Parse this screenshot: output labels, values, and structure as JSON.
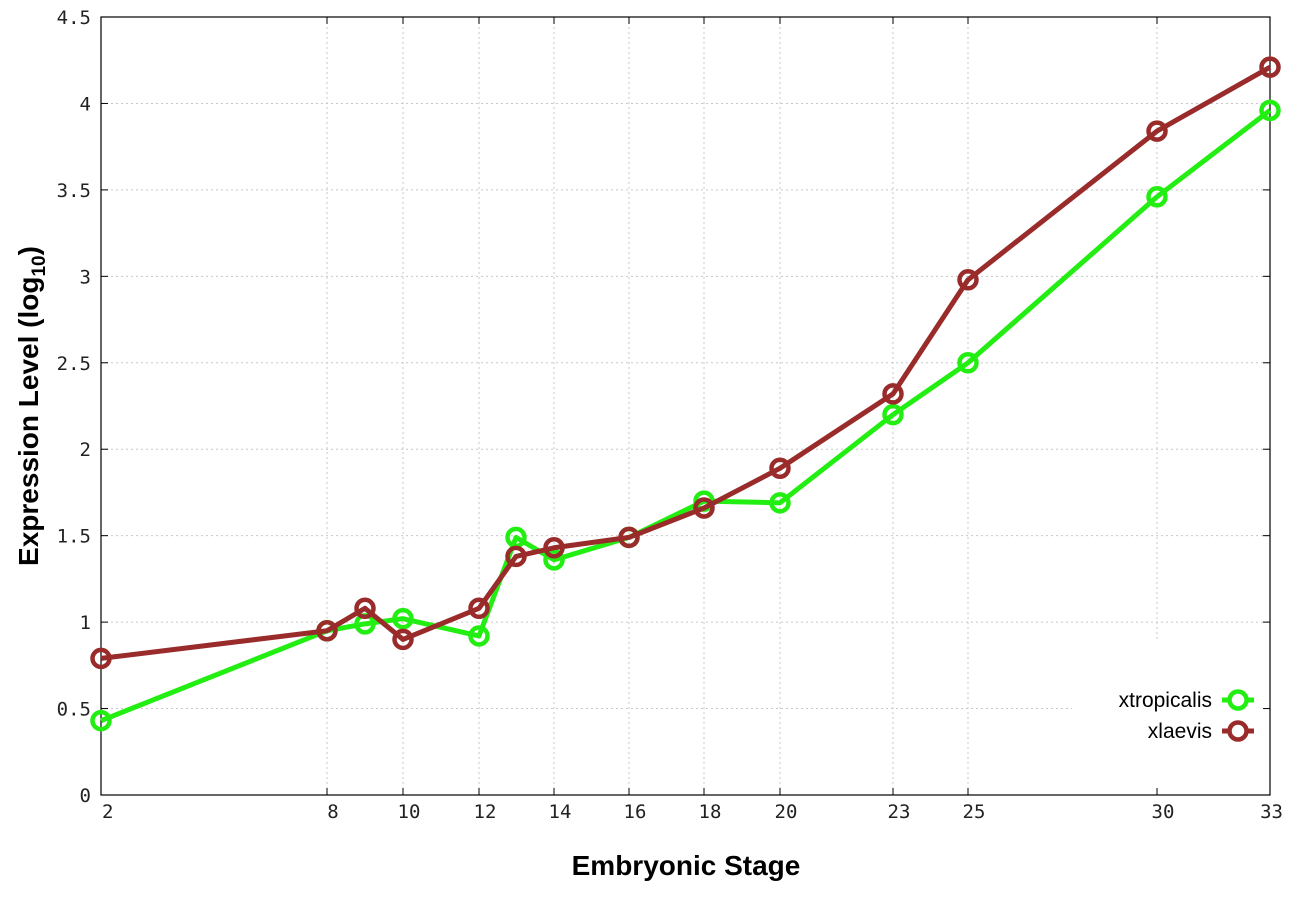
{
  "chart_data": {
    "type": "line",
    "title": "",
    "xlabel": "Embryonic Stage",
    "ylabel_main": "Expression Level (log",
    "ylabel_sub": "10",
    "ylabel_close": ")",
    "x_categories": [
      "2",
      "8",
      "9",
      "10",
      "12",
      "13",
      "14",
      "16",
      "18",
      "20",
      "23",
      "25",
      "30",
      "33"
    ],
    "x_tick_labels": [
      "2",
      "8",
      "10",
      "12",
      "14",
      "16",
      "18",
      "20",
      "23",
      "25",
      "30",
      "33"
    ],
    "y_tick_labels": [
      "0",
      "0.5",
      "1",
      "1.5",
      "2",
      "2.5",
      "3",
      "3.5",
      "4",
      "4.5"
    ],
    "ylim": [
      0,
      4.5
    ],
    "grid": true,
    "legend_position": "bottom-right",
    "series": [
      {
        "name": "xtropicalis",
        "color": "#22ee11",
        "x": [
          2,
          8,
          9,
          10,
          12,
          13,
          14,
          16,
          18,
          20,
          23,
          25,
          30,
          33
        ],
        "values": [
          0.43,
          0.95,
          0.99,
          1.02,
          0.92,
          1.49,
          1.36,
          1.49,
          1.7,
          1.69,
          2.2,
          2.5,
          3.46,
          3.96
        ]
      },
      {
        "name": "xlaevis",
        "color": "#9a2b2b",
        "x": [
          2,
          8,
          9,
          10,
          12,
          13,
          14,
          16,
          18,
          20,
          23,
          25,
          30,
          33
        ],
        "values": [
          0.79,
          0.95,
          1.08,
          0.9,
          1.08,
          1.38,
          1.43,
          1.49,
          1.66,
          1.89,
          2.32,
          2.98,
          3.84,
          4.21
        ]
      }
    ]
  }
}
